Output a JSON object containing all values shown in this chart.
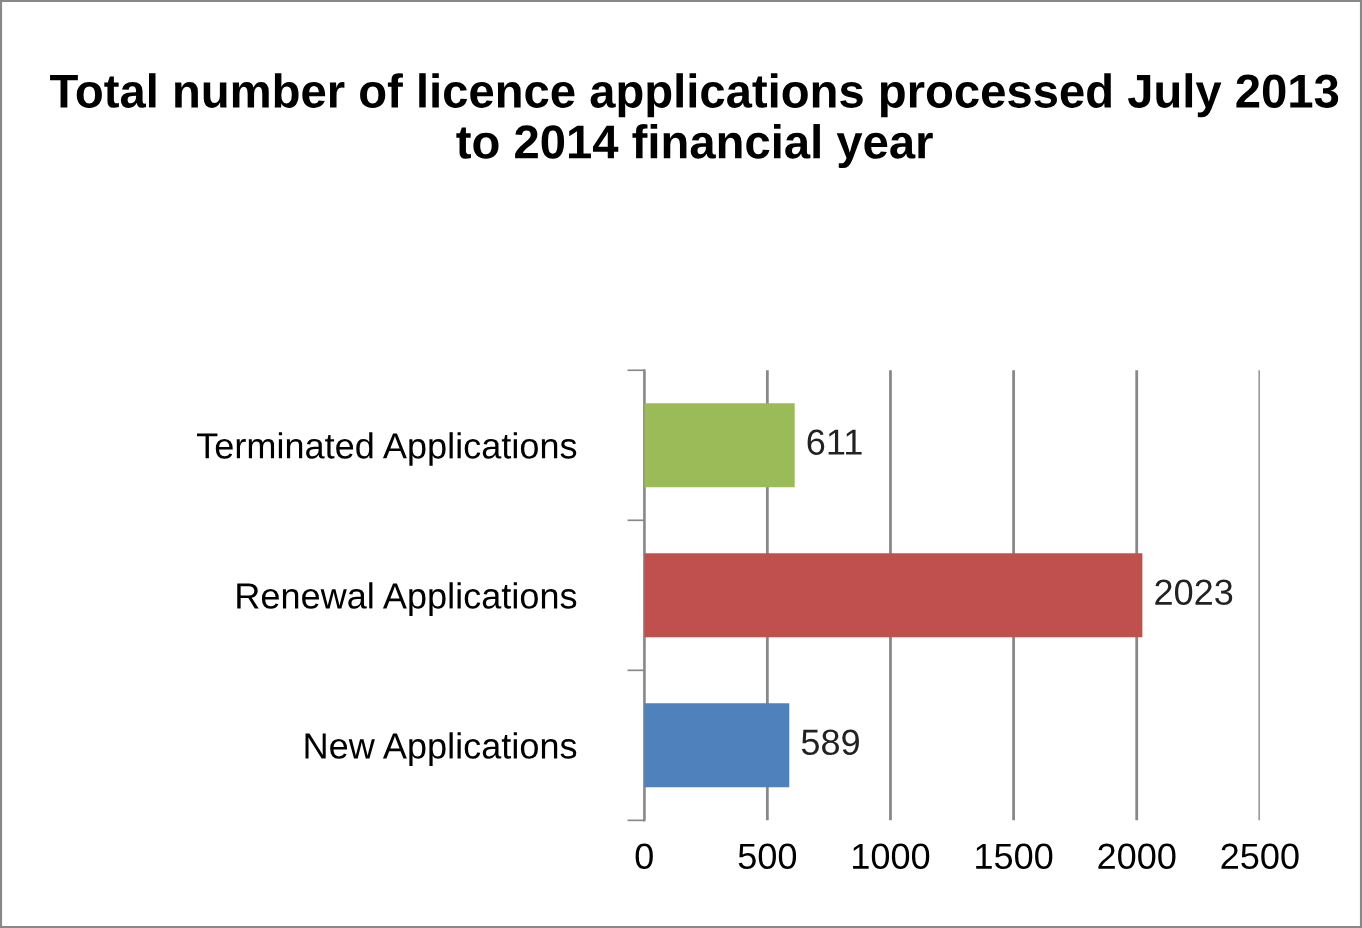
{
  "chart_data": {
    "type": "bar",
    "orientation": "horizontal",
    "title": "Total number of licence applications processed July 2013 to 2014 financial year",
    "categories": [
      "Terminated Applications",
      "Renewal Applications",
      "New Applications"
    ],
    "values": [
      611,
      2023,
      589
    ],
    "colors": [
      "#9bbb59",
      "#c0504d",
      "#4f81bd"
    ],
    "xlim": [
      0,
      2500
    ],
    "xticks": [
      0,
      500,
      1000,
      1500,
      2000,
      2500
    ],
    "grid": "x",
    "data_labels": true,
    "legend": false
  }
}
